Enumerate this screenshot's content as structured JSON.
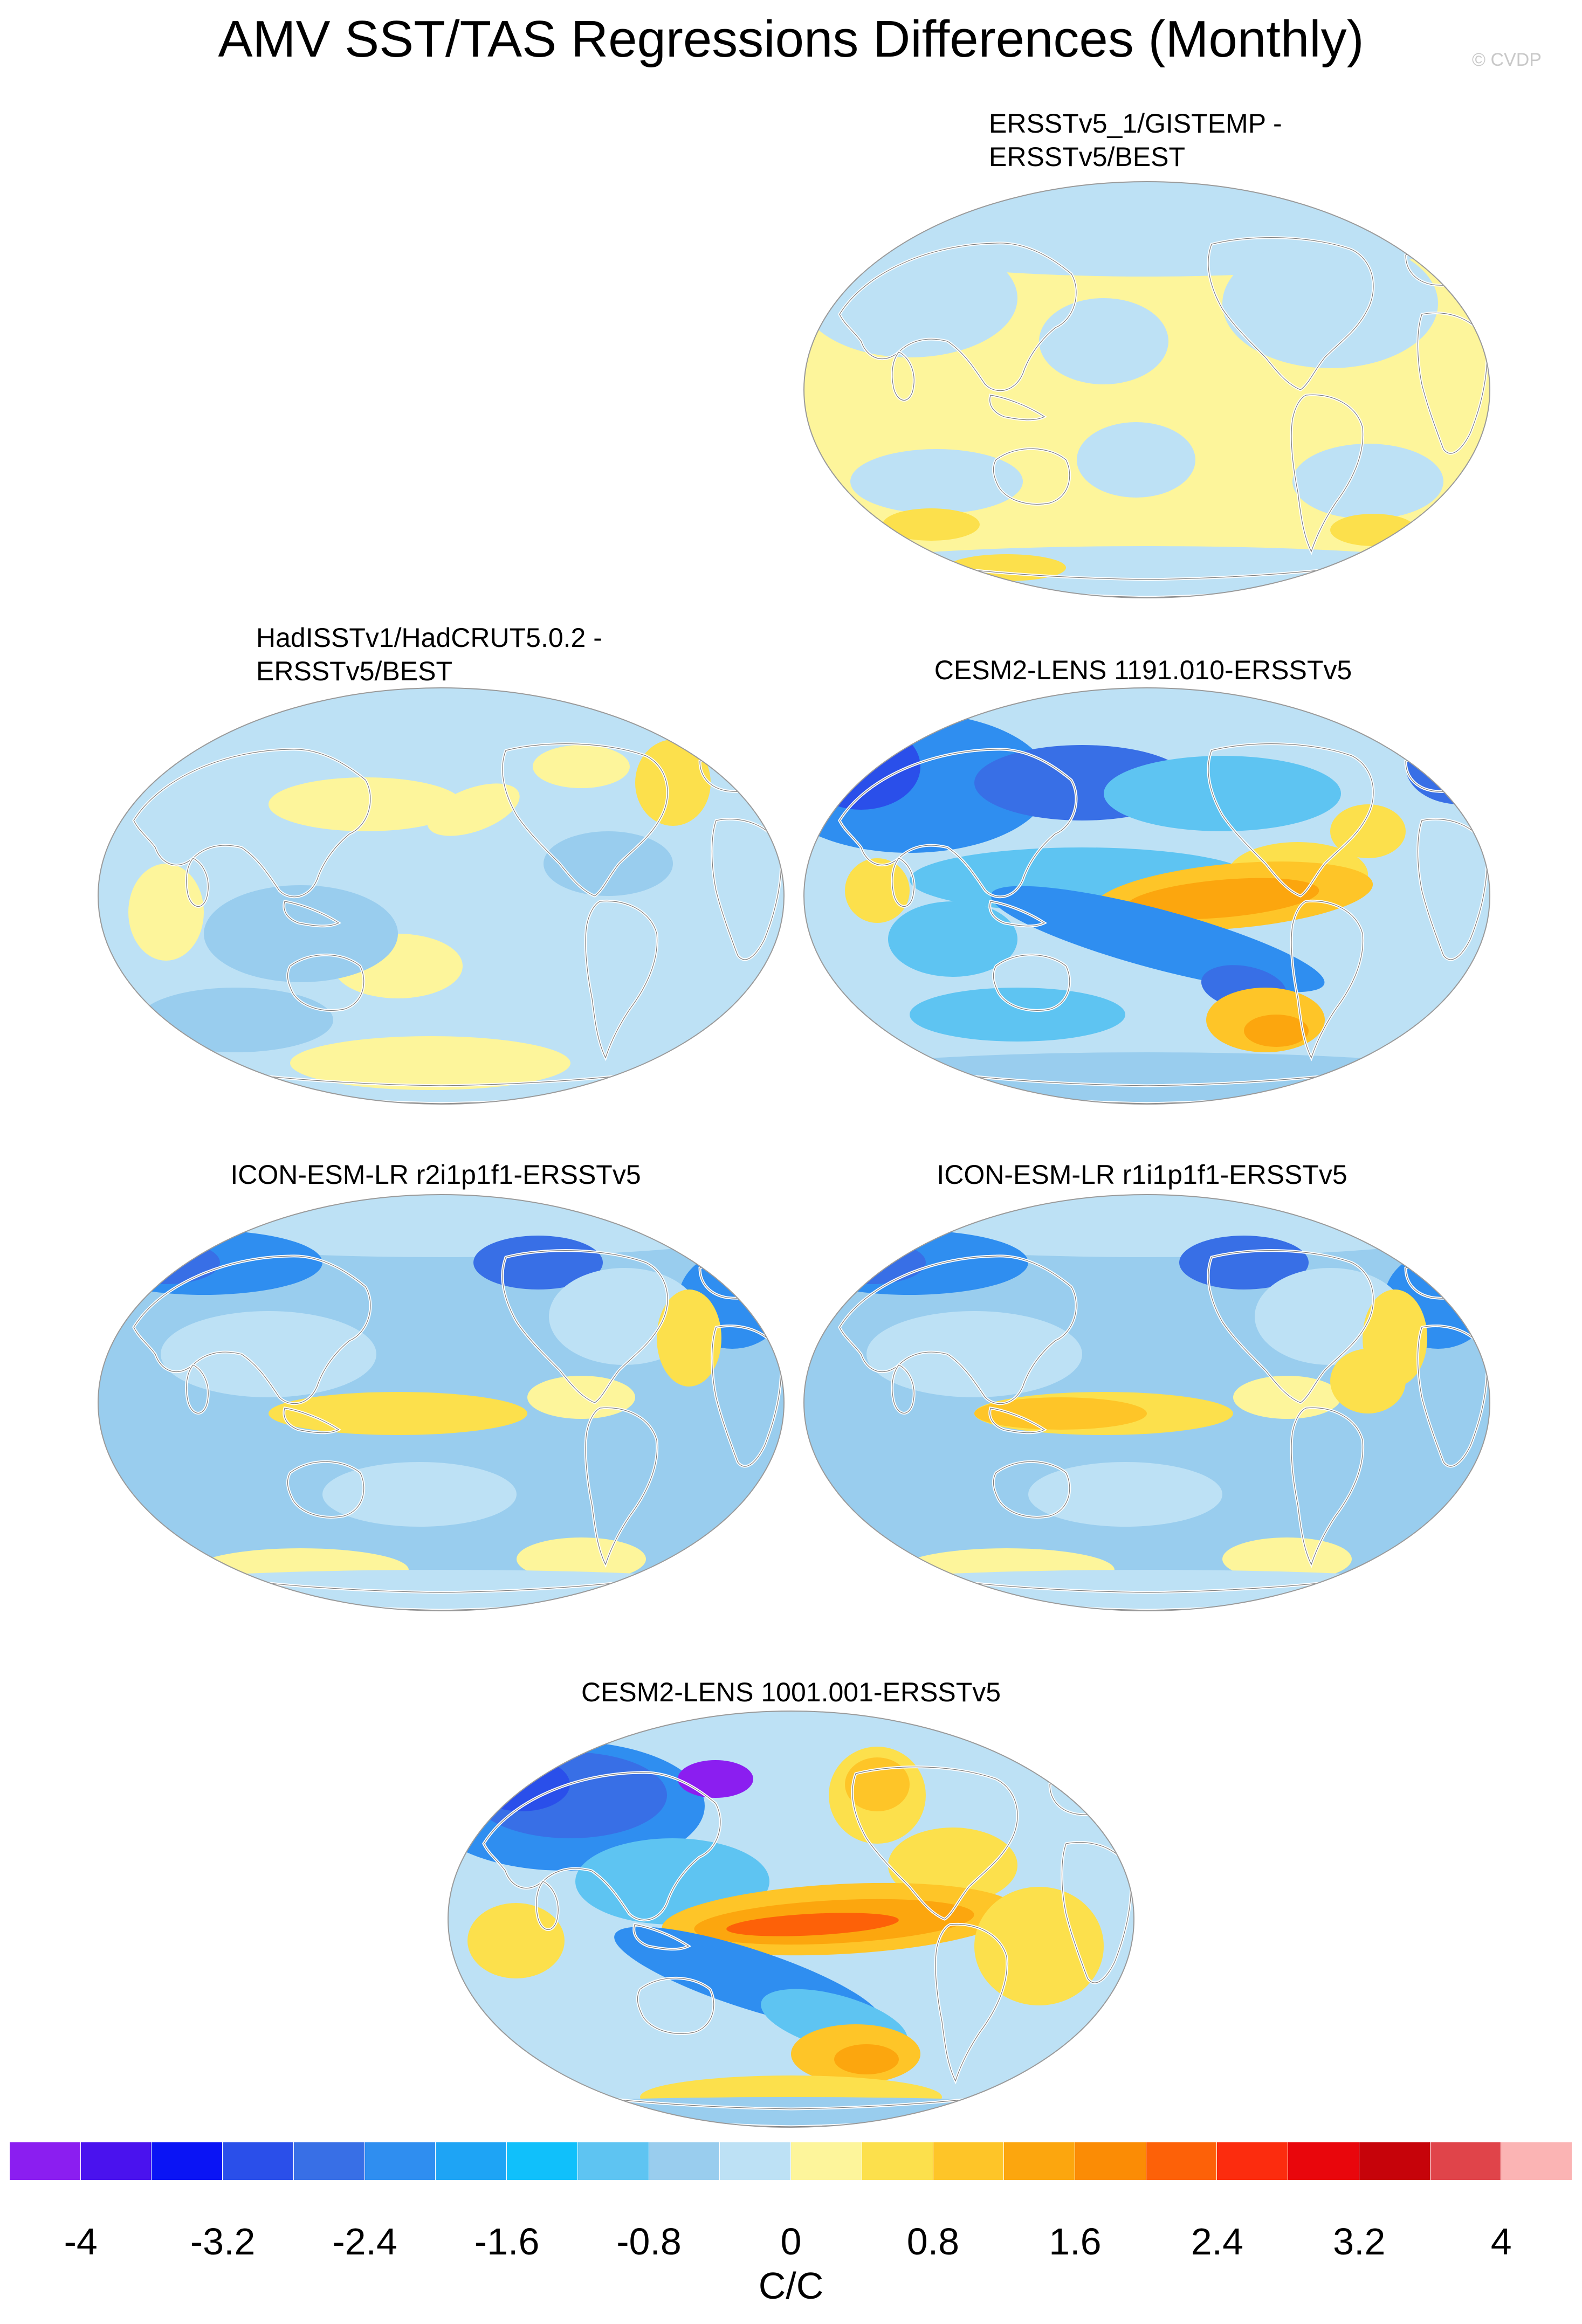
{
  "title": "AMV SST/TAS Regressions Differences (Monthly)",
  "watermark": "© CVDP",
  "panels": [
    {
      "lines": [
        "ERSSTv5_1/GISTEMP -",
        "ERSSTv5/BEST"
      ],
      "pattern": "obs_gistemp"
    },
    {
      "lines": [
        "HadISSTv1/HadCRUT5.0.2 -",
        "ERSSTv5/BEST"
      ],
      "pattern": "obs_hadcrut"
    },
    {
      "lines": [
        "CESM2-LENS 1191.010-ERSSTv5"
      ],
      "pattern": "cesm_1191"
    },
    {
      "lines": [
        "ICON-ESM-LR r2i1p1f1-ERSSTv5"
      ],
      "pattern": "icon_r2"
    },
    {
      "lines": [
        "ICON-ESM-LR r1i1p1f1-ERSSTv5"
      ],
      "pattern": "icon_r1"
    },
    {
      "lines": [
        "CESM2-LENS 1001.001-ERSSTv5"
      ],
      "pattern": "cesm_1001"
    }
  ],
  "colorbar": {
    "units": "C/C",
    "colors": [
      "#8b1ef0",
      "#4a12ee",
      "#0a14f5",
      "#2a4fea",
      "#386fe6",
      "#2f8ef0",
      "#1ea4f5",
      "#10c0fb",
      "#5ec4f2",
      "#99cdee",
      "#bde1f5",
      "#fdf59b",
      "#fce04c",
      "#fec528",
      "#fca60e",
      "#fb8c05",
      "#fd6108",
      "#fc2c0e",
      "#e9060c",
      "#c6030a",
      "#e0444a",
      "#fbb4b4"
    ],
    "tick_labels": [
      "-4",
      "-3.2",
      "-2.4",
      "-1.6",
      "-0.8",
      "0",
      "0.8",
      "1.6",
      "2.4",
      "3.2",
      "4"
    ]
  }
}
